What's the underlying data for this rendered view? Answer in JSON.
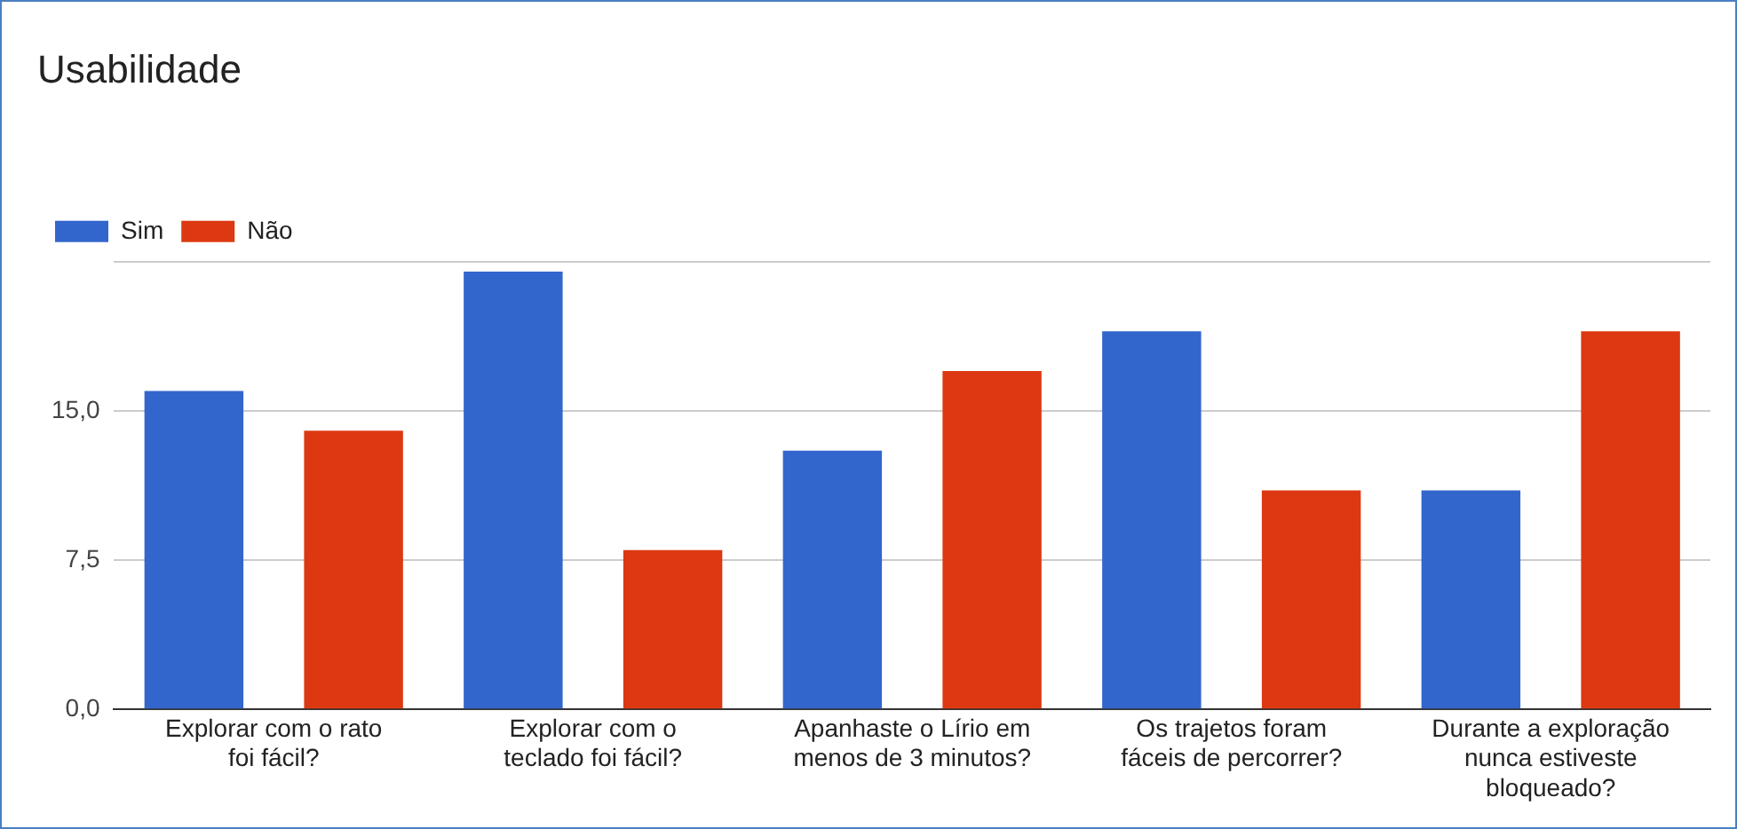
{
  "chart_data": {
    "type": "bar",
    "title": "Usabilidade",
    "categories": [
      "Explorar com o rato foi fácil?",
      "Explorar com o teclado foi fácil?",
      "Apanhaste o Lírio em menos de 3 minutos?",
      "Os trajetos foram fáceis de percorrer?",
      "Durante a exploração nunca estiveste bloqueado?"
    ],
    "series": [
      {
        "name": "Sim",
        "color": "#3366cc",
        "values": [
          16,
          22,
          13,
          19,
          11
        ]
      },
      {
        "name": "Não",
        "color": "#dc3912",
        "values": [
          14,
          8,
          17,
          11,
          19
        ]
      }
    ],
    "ylim": [
      0,
      22.5
    ],
    "yticks": [
      {
        "value": 0,
        "label": "0,0"
      },
      {
        "value": 7.5,
        "label": "7,5"
      },
      {
        "value": 15,
        "label": "15,0"
      },
      {
        "value": 22.5,
        "label": null
      }
    ],
    "grid": "y",
    "legend": "top left"
  }
}
